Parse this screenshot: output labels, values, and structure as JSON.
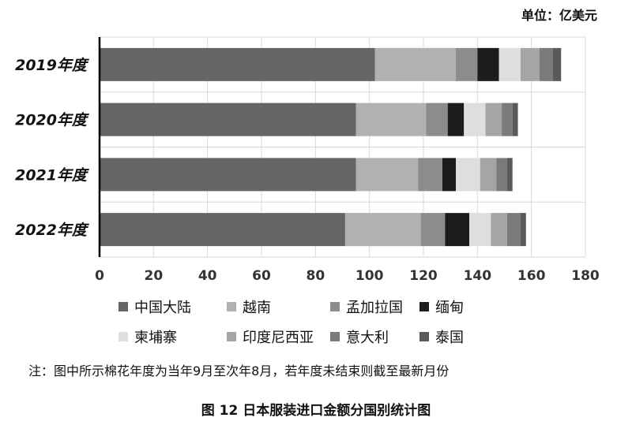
{
  "chart_data": {
    "type": "bar",
    "orientation": "horizontal",
    "stacked": true,
    "unit": "单位：亿美元",
    "categories": [
      "2019年度",
      "2020年度",
      "2021年度",
      "2022年度"
    ],
    "xlim": [
      0,
      180
    ],
    "xticks": [
      0,
      20,
      40,
      60,
      80,
      100,
      120,
      140,
      160,
      180
    ],
    "grid": "vertical",
    "legend_position": "bottom",
    "series": [
      {
        "name": "中国大陆",
        "color": "#656565",
        "values": [
          102,
          95,
          95,
          91
        ]
      },
      {
        "name": "越南",
        "color": "#b1b1b1",
        "values": [
          30,
          26,
          23,
          28
        ]
      },
      {
        "name": "孟加拉国",
        "color": "#8c8c8c",
        "values": [
          8,
          8,
          9,
          9
        ]
      },
      {
        "name": "缅甸",
        "color": "#1c1c1c",
        "values": [
          8,
          6,
          5,
          9
        ]
      },
      {
        "name": "柬埔寨",
        "color": "#dedede",
        "values": [
          8,
          8,
          9,
          8
        ]
      },
      {
        "name": "印度尼西亚",
        "color": "#a5a5a5",
        "values": [
          7,
          6,
          6,
          6
        ]
      },
      {
        "name": "意大利",
        "color": "#7b7b7b",
        "values": [
          5,
          4,
          4,
          5
        ]
      },
      {
        "name": "泰国",
        "color": "#5a5a5a",
        "values": [
          3,
          2,
          2,
          2
        ]
      }
    ]
  },
  "note": "注：图中所示棉花年度为当年9月至次年8月，若年度未结束则截至最新月份",
  "figure_title": "图 12   日本服装进口金额分国别统计图"
}
